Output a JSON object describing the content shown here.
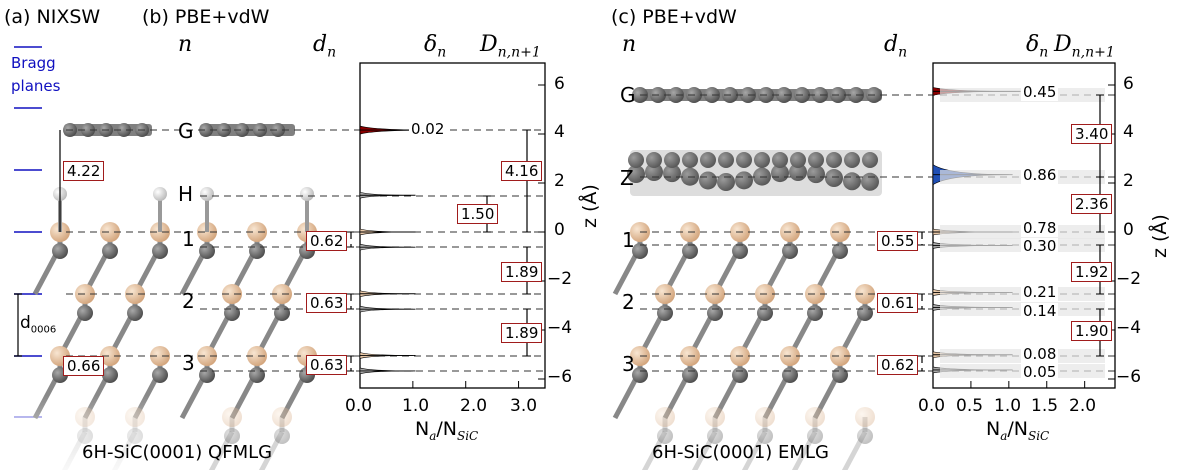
{
  "panels": {
    "a": {
      "title": "(a) NIXSW",
      "bragg_label": "Bragg planes",
      "bragg_line1": "Bragg",
      "bragg_line2": "planes",
      "dist_box": "4.22",
      "spacing_label": "d",
      "spacing_sub": "0006",
      "small_box": "0.66"
    },
    "b": {
      "title": "(b) PBE+vdW",
      "col_n": "n",
      "col_d": "d",
      "col_d_sub": "n",
      "layers": [
        "G",
        "H",
        "1",
        "2",
        "3"
      ],
      "d_boxes": [
        "0.62",
        "0.63",
        "0.63"
      ],
      "bottom_label": "6H-SiC(0001) QFMLG"
    },
    "b_chart": {
      "delta_label": "δ",
      "delta_sub": "n",
      "D_label": "D",
      "D_sub": "n,n+1",
      "delta_values": [
        "0.02"
      ],
      "D_values": [
        "1.50",
        "4.16",
        "1.89",
        "1.89"
      ]
    },
    "c": {
      "title": "(c) PBE+vdW",
      "col_n": "n",
      "col_d": "d",
      "col_d_sub": "n",
      "layers": [
        "G",
        "Z",
        "1",
        "2",
        "3"
      ],
      "d_boxes": [
        "0.55",
        "0.61",
        "0.62"
      ],
      "bottom_label": "6H-SiC(0001) EMLG"
    },
    "c_chart": {
      "delta_label": "δ",
      "delta_sub": "n",
      "D_label": "D",
      "D_sub": "n,n+1",
      "delta_values": [
        "0.45",
        "0.86",
        "0.78",
        "0.30",
        "0.21",
        "0.14",
        "0.08",
        "0.05"
      ],
      "D_values": [
        "3.40",
        "2.36",
        "1.92",
        "1.90"
      ]
    }
  },
  "axis": {
    "z_label": "z (Å)",
    "z_ticks": [
      "6",
      "4",
      "2",
      "0",
      "−2",
      "−4",
      "−6"
    ],
    "x_label_main": "N",
    "x_label_sub_a": "a",
    "x_label_sub_b": "SiC",
    "x_ticks_b": [
      "0.0",
      "1.0",
      "2.0",
      "3.0"
    ],
    "x_ticks_c": [
      "0.0",
      "0.5",
      "1.0",
      "1.5",
      "2.0"
    ]
  },
  "colors": {
    "graphene": "#808080",
    "si": "#e8c8a8",
    "c_atom": "#6b6b6b",
    "h": "#ffffff",
    "box_border": "#a01c1c",
    "bragg": "#1010c0",
    "peak_red": "#8b0000",
    "peak_blue": "#1f4fb5"
  },
  "chart_data": [
    {
      "type": "area",
      "title": "",
      "xlabel": "Na/NSiC",
      "ylabel": "z (Å)",
      "xlim": [
        0,
        3.5
      ],
      "ylim": [
        -6.5,
        6.8
      ],
      "series": [
        {
          "peaks_z": [
            4.16,
            1.5,
            0,
            -0.62,
            -2.52,
            -3.15,
            -5.04,
            -5.67
          ]
        }
      ],
      "annotations": {
        "delta": [
          0.02
        ],
        "D": [
          1.5,
          4.16,
          1.89,
          1.89
        ]
      }
    },
    {
      "type": "area",
      "title": "",
      "xlabel": "Na/NSiC",
      "ylabel": "z (Å)",
      "xlim": [
        0,
        2.4
      ],
      "ylim": [
        -6.5,
        6.8
      ],
      "series": [
        {
          "peaks_z": [
            5.74,
            2.34,
            0,
            -0.55,
            -2.47,
            -3.08,
            -5.01,
            -5.63
          ]
        }
      ],
      "annotations": {
        "delta": [
          0.45,
          0.86,
          0.78,
          0.3,
          0.21,
          0.14,
          0.08,
          0.05
        ],
        "D": [
          3.4,
          2.36,
          1.92,
          1.9
        ]
      }
    }
  ]
}
